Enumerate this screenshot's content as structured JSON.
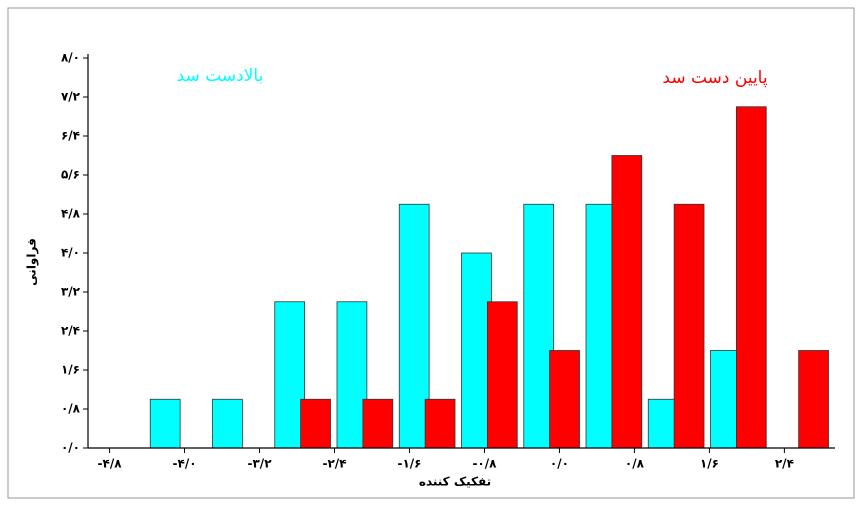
{
  "chart_data": {
    "type": "bar",
    "xlabel": "تفکیک کننده",
    "ylabel": "فراوانی",
    "categories": [
      null,
      null,
      null,
      null,
      null,
      null,
      null,
      null,
      null,
      null,
      null,
      null
    ],
    "series": [
      {
        "name": "بالادست سد",
        "color": "#00ffff",
        "values": [
          0,
          1,
          1,
          3,
          3,
          5,
          4,
          5,
          5,
          1,
          2,
          0
        ]
      },
      {
        "name": "پایین دست سد",
        "color": "#ff0000",
        "values": [
          0,
          0,
          0,
          1,
          1,
          1,
          3,
          2,
          6,
          5,
          7,
          2
        ]
      }
    ],
    "ylim": [
      0,
      8
    ],
    "yticks": [
      {
        "value": 0,
        "label": "۰/۰"
      },
      {
        "value": 0.8,
        "label": "۰/۸"
      },
      {
        "value": 1.6,
        "label": "۱/۶"
      },
      {
        "value": 2.4,
        "label": "۲/۴"
      },
      {
        "value": 3.2,
        "label": "۳/۲"
      },
      {
        "value": 4,
        "label": "۴/۰"
      },
      {
        "value": 4.8,
        "label": "۴/۸"
      },
      {
        "value": 5.6,
        "label": "۵/۶"
      },
      {
        "value": 6.4,
        "label": "۶/۴"
      },
      {
        "value": 7.2,
        "label": "۷/۲"
      },
      {
        "value": 8,
        "label": "۸/۰"
      }
    ],
    "xlim": [
      -5.03,
      2.94
    ],
    "xticks": [
      {
        "value": -4.8,
        "label": "-۴/۸"
      },
      {
        "value": -4,
        "label": "-۴/۰"
      },
      {
        "value": -3.2,
        "label": "-۳/۲"
      },
      {
        "value": -2.4,
        "label": "-۲/۴"
      },
      {
        "value": -1.6,
        "label": "-۱/۶"
      },
      {
        "value": -0.8,
        "label": "-۰/۸"
      },
      {
        "value": 0,
        "label": "۰/۰"
      },
      {
        "value": 0.8,
        "label": "۰/۸"
      },
      {
        "value": 1.6,
        "label": "۱/۶"
      },
      {
        "value": 2.4,
        "label": "۲/۴"
      }
    ],
    "grid": false
  }
}
